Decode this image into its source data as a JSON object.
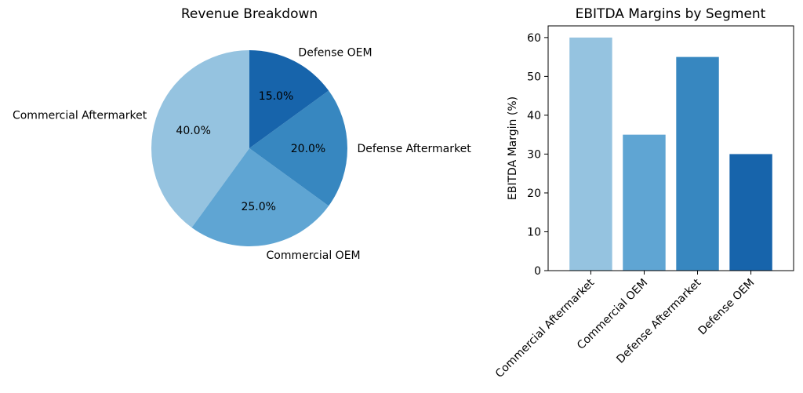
{
  "chart_data": [
    {
      "type": "pie",
      "title": "Revenue Breakdown",
      "categories": [
        "Commercial Aftermarket",
        "Commercial OEM",
        "Defense Aftermarket",
        "Defense OEM"
      ],
      "values": [
        40.0,
        25.0,
        20.0,
        15.0
      ],
      "pct_labels": [
        "40.0%",
        "25.0%",
        "20.0%",
        "15.0%"
      ],
      "colors": [
        "#95c3e0",
        "#5fa5d3",
        "#3787c0",
        "#1764ab"
      ]
    },
    {
      "type": "bar",
      "title": "EBITDA Margins by Segment",
      "categories": [
        "Commercial Aftermarket",
        "Commercial OEM",
        "Defense Aftermarket",
        "Defense OEM"
      ],
      "values": [
        60,
        35,
        55,
        30
      ],
      "xlabel": "",
      "ylabel": "EBITDA Margin (%)",
      "ylim": [
        0,
        63
      ],
      "yticks": [
        0,
        10,
        20,
        30,
        40,
        50,
        60
      ],
      "grid": false,
      "colors": [
        "#95c3e0",
        "#5fa5d3",
        "#3787c0",
        "#1764ab"
      ]
    }
  ]
}
